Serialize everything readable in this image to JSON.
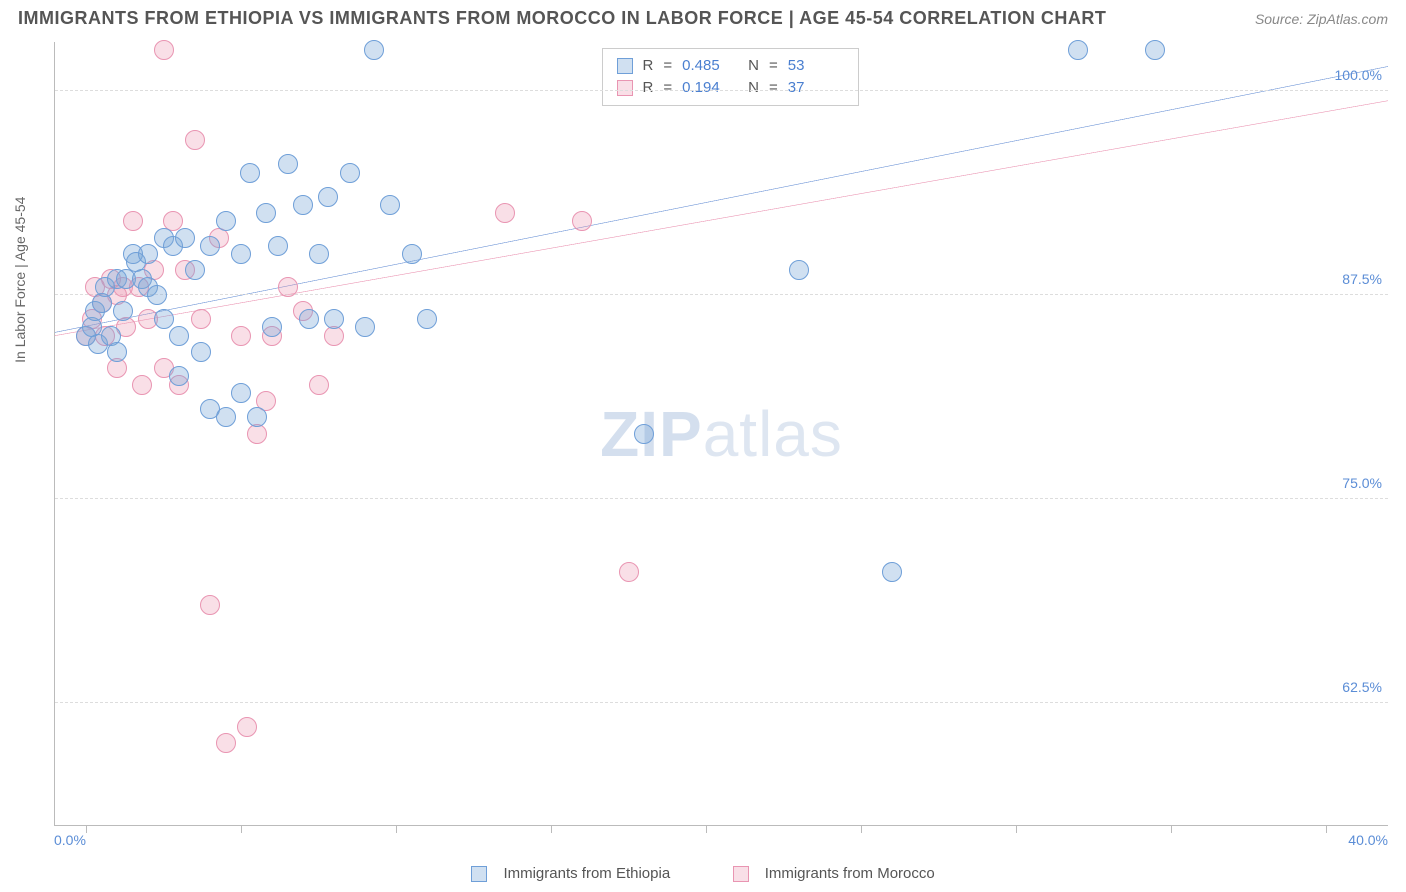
{
  "header": {
    "title": "IMMIGRANTS FROM ETHIOPIA VS IMMIGRANTS FROM MOROCCO IN LABOR FORCE | AGE 45-54 CORRELATION CHART",
    "source": "Source: ZipAtlas.com"
  },
  "axes": {
    "y_label": "In Labor Force | Age 45-54",
    "x_min_label": "0.0%",
    "x_max_label": "40.0%",
    "xlim": [
      -1,
      42
    ],
    "ylim": [
      55,
      103
    ],
    "y_ticks": [
      {
        "v": 62.5,
        "label": "62.5%"
      },
      {
        "v": 75.0,
        "label": "75.0%"
      },
      {
        "v": 87.5,
        "label": "87.5%"
      },
      {
        "v": 100.0,
        "label": "100.0%"
      }
    ],
    "x_ticks": [
      0,
      5,
      10,
      15,
      20,
      25,
      30,
      35,
      40
    ],
    "grid_color": "#dddddd",
    "axis_color": "#bbbbbb"
  },
  "series": {
    "a": {
      "label": "Immigrants from Ethiopia",
      "fill": "rgba(120,165,216,0.35)",
      "stroke": "#6f9fd8",
      "line_stroke": "#2e66c4",
      "r_value": "0.485",
      "n_value": "53",
      "trend": {
        "x1": -1,
        "y1": 85.2,
        "x2": 42,
        "y2": 101.5
      },
      "points": [
        [
          0,
          85
        ],
        [
          0.2,
          85.5
        ],
        [
          0.3,
          86.5
        ],
        [
          0.4,
          84.5
        ],
        [
          0.5,
          87
        ],
        [
          0.6,
          88
        ],
        [
          0.8,
          85
        ],
        [
          1,
          88.5
        ],
        [
          1,
          84
        ],
        [
          1.2,
          86.5
        ],
        [
          1.3,
          88.5
        ],
        [
          1.5,
          90
        ],
        [
          1.6,
          89.5
        ],
        [
          1.8,
          88.5
        ],
        [
          2,
          88
        ],
        [
          2,
          90
        ],
        [
          2.3,
          87.5
        ],
        [
          2.5,
          86
        ],
        [
          2.5,
          91
        ],
        [
          2.8,
          90.5
        ],
        [
          3,
          85
        ],
        [
          3,
          82.5
        ],
        [
          3.2,
          91
        ],
        [
          3.5,
          89
        ],
        [
          3.7,
          84
        ],
        [
          4,
          90.5
        ],
        [
          4,
          80.5
        ],
        [
          4.5,
          92
        ],
        [
          4.5,
          80
        ],
        [
          5,
          90
        ],
        [
          5,
          81.5
        ],
        [
          5.3,
          95
        ],
        [
          5.5,
          80
        ],
        [
          5.8,
          92.5
        ],
        [
          6,
          85.5
        ],
        [
          6.2,
          90.5
        ],
        [
          6.5,
          95.5
        ],
        [
          7,
          93
        ],
        [
          7.2,
          86
        ],
        [
          7.5,
          90
        ],
        [
          7.8,
          93.5
        ],
        [
          8,
          86
        ],
        [
          8.5,
          95
        ],
        [
          9,
          85.5
        ],
        [
          9.3,
          102.5
        ],
        [
          9.8,
          93
        ],
        [
          10.5,
          90
        ],
        [
          11,
          86
        ],
        [
          18,
          79
        ],
        [
          23,
          89
        ],
        [
          32,
          102.5
        ],
        [
          34.5,
          102.5
        ],
        [
          26,
          70.5
        ]
      ]
    },
    "b": {
      "label": "Immigrants from Morocco",
      "fill": "rgba(235,150,175,0.3)",
      "stroke": "#e995b2",
      "line_stroke": "#e26a94",
      "r_value": "0.194",
      "n_value": "37",
      "trend": {
        "x1": -1,
        "y1": 85.0,
        "x2": 42,
        "y2": 99.4
      },
      "points": [
        [
          0,
          85
        ],
        [
          0.2,
          86
        ],
        [
          0.3,
          88
        ],
        [
          0.5,
          87
        ],
        [
          0.6,
          85
        ],
        [
          0.8,
          88.5
        ],
        [
          1,
          87.5
        ],
        [
          1,
          83
        ],
        [
          1.2,
          88
        ],
        [
          1.3,
          85.5
        ],
        [
          1.5,
          92
        ],
        [
          1.7,
          88
        ],
        [
          1.8,
          82
        ],
        [
          2,
          86
        ],
        [
          2.2,
          89
        ],
        [
          2.5,
          83
        ],
        [
          2.5,
          102.5
        ],
        [
          2.8,
          92
        ],
        [
          3,
          82
        ],
        [
          3.2,
          89
        ],
        [
          3.5,
          97
        ],
        [
          3.7,
          86
        ],
        [
          4,
          68.5
        ],
        [
          4.3,
          91
        ],
        [
          4.5,
          60
        ],
        [
          5,
          85
        ],
        [
          5.2,
          61
        ],
        [
          5.5,
          79
        ],
        [
          5.8,
          81
        ],
        [
          6,
          85
        ],
        [
          6.5,
          88
        ],
        [
          7,
          86.5
        ],
        [
          7.5,
          82
        ],
        [
          8,
          85
        ],
        [
          16,
          92
        ],
        [
          13.5,
          92.5
        ],
        [
          17.5,
          70.5
        ]
      ]
    }
  },
  "legend_box": {
    "r_prefix": "R",
    "n_prefix": "N",
    "eq": "="
  },
  "watermark": {
    "a": "ZIP",
    "b": "atlas"
  },
  "style": {
    "background": "#ffffff",
    "marker_radius": 10
  }
}
